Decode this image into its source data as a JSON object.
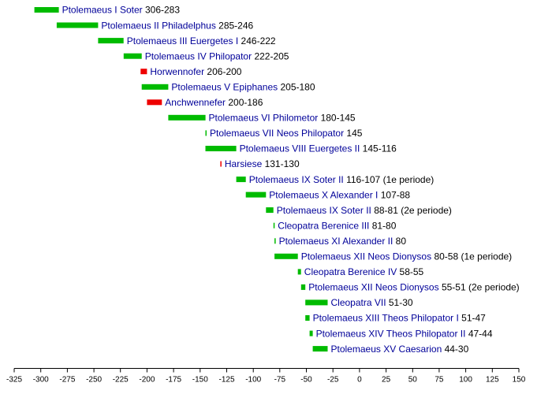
{
  "chart_data": {
    "type": "bar",
    "orientation": "horizontal",
    "title": "",
    "xlabel": "",
    "ylabel": "",
    "xlim": [
      -325,
      150
    ],
    "xticks": [
      -325,
      -300,
      -275,
      -250,
      -225,
      -200,
      -175,
      -150,
      -125,
      -100,
      -75,
      -50,
      -25,
      0,
      25,
      50,
      75,
      100,
      125,
      150
    ],
    "grid": false,
    "legend": "none",
    "colors": {
      "ptolemaic": "#00bb00",
      "rebel": "#ee0000",
      "name_text": "#000099",
      "detail_text": "#000000",
      "axis": "#000000"
    },
    "rulers": [
      {
        "name": "Ptolemaeus I Soter",
        "detail": "306-283",
        "start": -306,
        "end": -283,
        "group": "ptolemaic"
      },
      {
        "name": "Ptolemaeus II Philadelphus",
        "detail": "285-246",
        "start": -285,
        "end": -246,
        "group": "ptolemaic"
      },
      {
        "name": "Ptolemaeus III Euergetes I",
        "detail": "246-222",
        "start": -246,
        "end": -222,
        "group": "ptolemaic"
      },
      {
        "name": "Ptolemaeus IV Philopator",
        "detail": "222-205",
        "start": -222,
        "end": -205,
        "group": "ptolemaic"
      },
      {
        "name": "Horwennofer",
        "detail": "206-200",
        "start": -206,
        "end": -200,
        "group": "rebel"
      },
      {
        "name": "Ptolemaeus V Epiphanes",
        "detail": "205-180",
        "start": -205,
        "end": -180,
        "group": "ptolemaic"
      },
      {
        "name": "Anchwennefer",
        "detail": "200-186",
        "start": -200,
        "end": -186,
        "group": "rebel"
      },
      {
        "name": "Ptolemaeus VI Philometor",
        "detail": "180-145",
        "start": -180,
        "end": -145,
        "group": "ptolemaic"
      },
      {
        "name": "Ptolemaeus VII Neos Philopator",
        "detail": "145",
        "start": -145,
        "end": -144,
        "group": "ptolemaic"
      },
      {
        "name": "Ptolemaeus VIII Euergetes II",
        "detail": "145-116",
        "start": -145,
        "end": -116,
        "group": "ptolemaic"
      },
      {
        "name": "Harsiese",
        "detail": "131-130",
        "start": -131,
        "end": -130,
        "group": "rebel"
      },
      {
        "name": "Ptolemaeus IX Soter II",
        "detail": "116-107 (1e periode)",
        "start": -116,
        "end": -107,
        "group": "ptolemaic"
      },
      {
        "name": "Ptolemaeus X Alexander I",
        "detail": "107-88",
        "start": -107,
        "end": -88,
        "group": "ptolemaic"
      },
      {
        "name": "Ptolemaeus IX Soter II",
        "detail": "88-81 (2e periode)",
        "start": -88,
        "end": -81,
        "group": "ptolemaic"
      },
      {
        "name": "Cleopatra Berenice III",
        "detail": "81-80",
        "start": -81,
        "end": -80,
        "group": "ptolemaic"
      },
      {
        "name": "Ptolemaeus XI Alexander II",
        "detail": "80",
        "start": -80,
        "end": -79,
        "group": "ptolemaic"
      },
      {
        "name": "Ptolemaeus XII Neos Dionysos",
        "detail": "80-58 (1e periode)",
        "start": -80,
        "end": -58,
        "group": "ptolemaic"
      },
      {
        "name": "Cleopatra Berenice IV",
        "detail": "58-55",
        "start": -58,
        "end": -55,
        "group": "ptolemaic"
      },
      {
        "name": "Ptolemaeus XII Neos Dionysos",
        "detail": "55-51 (2e periode)",
        "start": -55,
        "end": -51,
        "group": "ptolemaic"
      },
      {
        "name": "Cleopatra VII",
        "detail": "51-30",
        "start": -51,
        "end": -30,
        "group": "ptolemaic"
      },
      {
        "name": "Ptolemaeus XIII Theos Philopator I",
        "detail": "51-47",
        "start": -51,
        "end": -47,
        "group": "ptolemaic"
      },
      {
        "name": "Ptolemaeus XIV Theos Philopator II",
        "detail": "47-44",
        "start": -47,
        "end": -44,
        "group": "ptolemaic"
      },
      {
        "name": "Ptolemaeus XV Caesarion",
        "detail": "44-30",
        "start": -44,
        "end": -30,
        "group": "ptolemaic"
      }
    ]
  }
}
